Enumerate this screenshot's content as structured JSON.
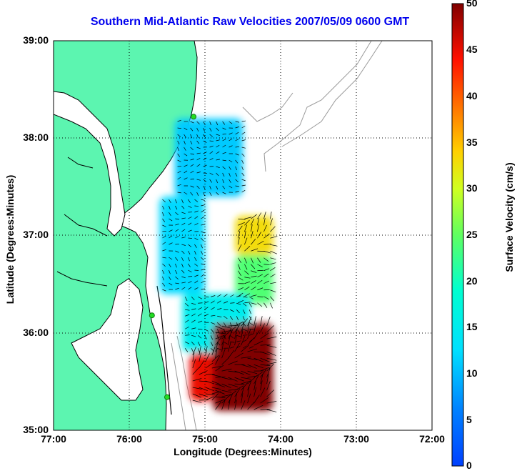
{
  "title": "Southern Mid-Atlantic Raw Velocities 2007/05/09 0600 GMT",
  "axes": {
    "xlabel": "Longitude (Degrees:Minutes)",
    "ylabel": "Latitude (Degrees:Minutes)",
    "x_ticks": [
      "77:00",
      "76:00",
      "75:00",
      "74:00",
      "73:00",
      "72:00"
    ],
    "y_ticks": [
      "39:00",
      "38:00",
      "37:00",
      "36:00",
      "35:00"
    ]
  },
  "colorbar": {
    "label": "Surface Velocity (cm/s)",
    "ticks": [
      "0",
      "5",
      "10",
      "15",
      "20",
      "25",
      "30",
      "35",
      "40",
      "45",
      "50"
    ],
    "min": 0,
    "max": 50,
    "colormap": "jet"
  },
  "colors": {
    "land": "#5cf5b0",
    "coastline": "#000000",
    "bathymetry": "#999999",
    "title": "#0000ee",
    "station": "#22dd22"
  },
  "chart_data": {
    "type": "heatmap",
    "title": "Southern Mid-Atlantic Raw Velocities 2007/05/09 0600 GMT",
    "xlabel": "Longitude (Degrees:Minutes)",
    "ylabel": "Latitude (Degrees:Minutes)",
    "xlim": [
      -77,
      -72
    ],
    "ylim": [
      35,
      39
    ],
    "grid": true,
    "value_label": "Surface Velocity (cm/s)",
    "value_range": [
      0,
      50
    ],
    "regions": [
      {
        "lon": [
          -75.4,
          -74.5
        ],
        "lat": [
          37.4,
          38.2
        ],
        "velocity": 11
      },
      {
        "lon": [
          -75.6,
          -75.0
        ],
        "lat": [
          36.4,
          37.4
        ],
        "velocity": 12
      },
      {
        "lon": [
          -74.6,
          -74.1
        ],
        "lat": [
          36.8,
          37.2
        ],
        "velocity": 33
      },
      {
        "lon": [
          -74.6,
          -74.1
        ],
        "lat": [
          36.3,
          36.8
        ],
        "velocity": 24
      },
      {
        "lon": [
          -75.3,
          -74.4
        ],
        "lat": [
          35.8,
          36.4
        ],
        "velocity": 15
      },
      {
        "lon": [
          -74.9,
          -74.1
        ],
        "lat": [
          35.2,
          36.1
        ],
        "velocity": 50
      },
      {
        "lon": [
          -75.2,
          -74.9
        ],
        "lat": [
          35.3,
          35.8
        ],
        "velocity": 45
      }
    ],
    "stations": [
      {
        "lon": -75.15,
        "lat": 38.22
      },
      {
        "lon": -75.7,
        "lat": 36.18
      },
      {
        "lon": -75.5,
        "lat": 35.34
      }
    ]
  }
}
